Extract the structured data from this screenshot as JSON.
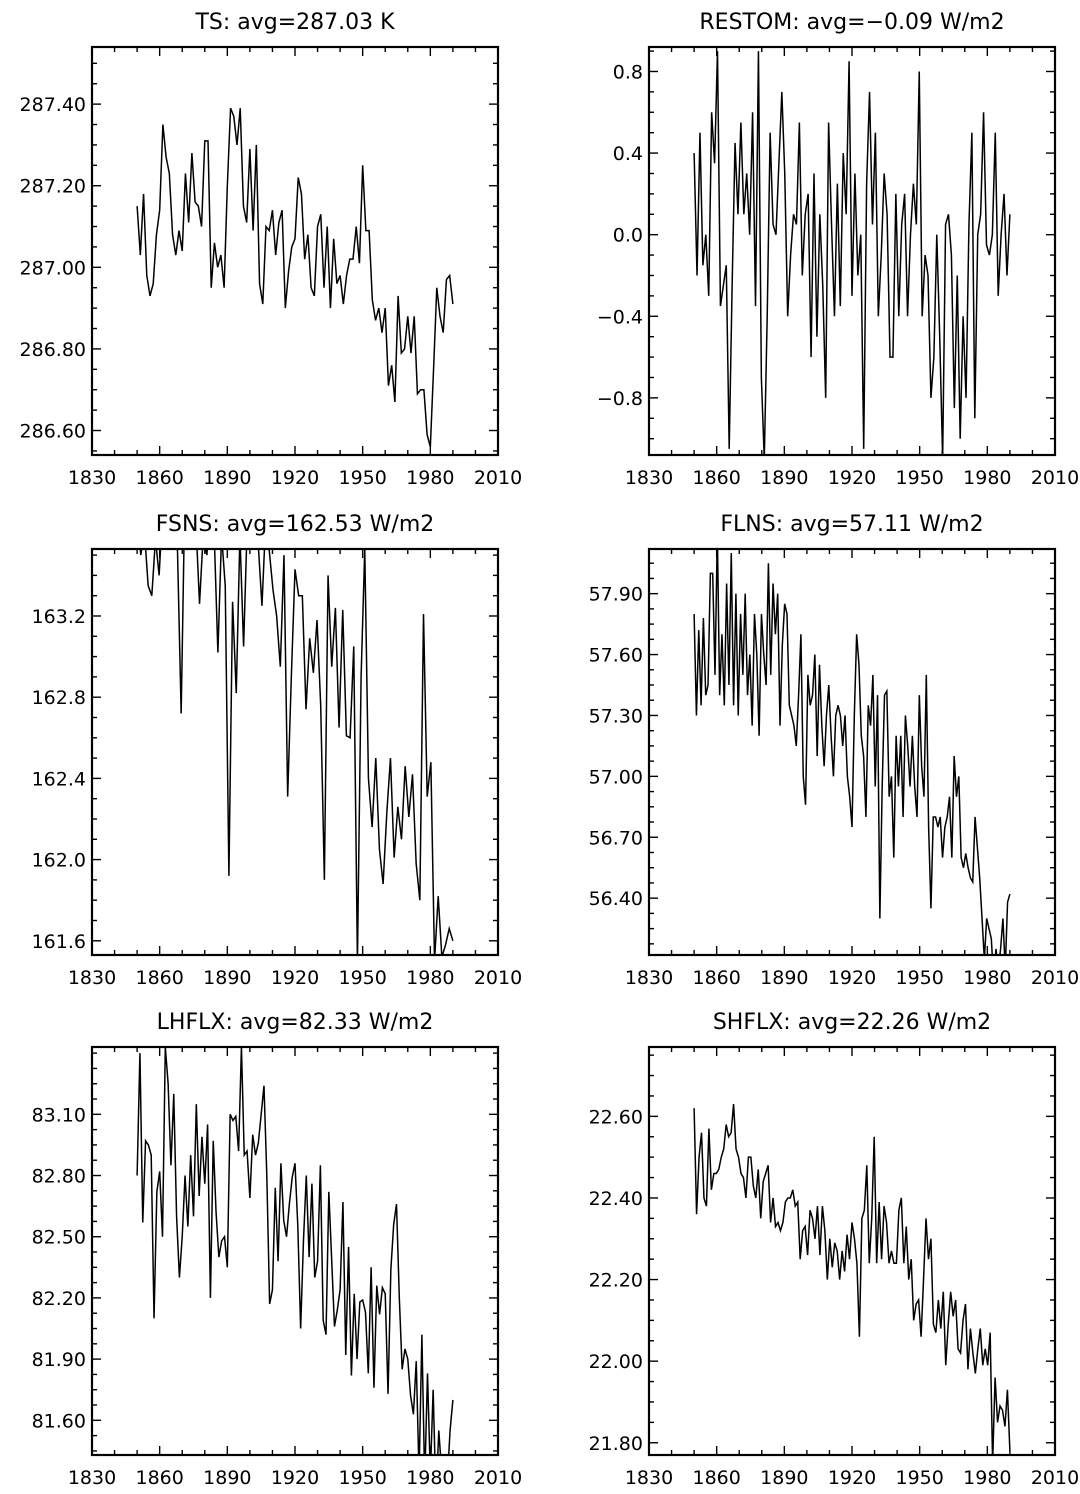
{
  "chart_data": [
    {
      "type": "line",
      "title": "TS: avg=287.03 K",
      "xlim": [
        1830,
        2010
      ],
      "xticks": [
        1830,
        1860,
        1890,
        1920,
        1950,
        1980,
        2010
      ],
      "xtick_labels": [
        "1830",
        "1860",
        "1890",
        "1920",
        "1950",
        "1980",
        "2010"
      ],
      "ylim": [
        286.54,
        287.54
      ],
      "yticks": [
        286.6,
        286.8,
        287.0,
        287.2,
        287.4
      ],
      "ytick_labels": [
        "286.60",
        "286.80",
        "287.00",
        "287.20",
        "287.40"
      ],
      "x_start": 1850,
      "y": [
        287.15,
        287.03,
        287.18,
        286.98,
        286.93,
        286.96,
        287.08,
        287.14,
        287.35,
        287.27,
        287.23,
        287.08,
        287.03,
        287.09,
        287.04,
        287.23,
        287.11,
        287.28,
        287.16,
        287.15,
        287.1,
        287.31,
        287.31,
        286.95,
        287.06,
        287.0,
        287.03,
        286.95,
        287.2,
        287.39,
        287.37,
        287.3,
        287.39,
        287.15,
        287.11,
        287.29,
        287.09,
        287.3,
        286.96,
        286.91,
        287.1,
        287.09,
        287.14,
        287.03,
        287.11,
        287.14,
        286.9,
        286.99,
        287.05,
        287.07,
        287.22,
        287.18,
        287.02,
        287.08,
        286.95,
        286.93,
        287.1,
        287.13,
        286.95,
        287.1,
        286.9,
        287.07,
        286.96,
        286.98,
        286.91,
        286.98,
        287.02,
        287.02,
        287.1,
        287.01,
        287.25,
        287.09,
        287.09,
        286.92,
        286.87,
        286.9,
        286.84,
        286.9,
        286.71,
        286.76,
        286.67,
        286.93,
        286.79,
        286.8,
        286.88,
        286.79,
        286.88,
        286.69,
        286.7,
        286.7,
        286.59,
        286.56,
        286.75,
        286.95,
        286.88,
        286.84,
        286.97,
        286.98,
        286.91
      ]
    },
    {
      "type": "line",
      "title": "RESTOM: avg=−0.09 W/m2",
      "xlim": [
        1830,
        2010
      ],
      "xticks": [
        1830,
        1860,
        1890,
        1920,
        1950,
        1980,
        2010
      ],
      "xtick_labels": [
        "1830",
        "1860",
        "1890",
        "1920",
        "1950",
        "1980",
        "2010"
      ],
      "ylim": [
        -1.08,
        0.92
      ],
      "yticks": [
        -0.8,
        -0.4,
        0.0,
        0.4,
        0.8
      ],
      "ytick_labels": [
        "−0.8",
        "−0.4",
        "0.0",
        "0.4",
        "0.8"
      ],
      "x_start": 1850,
      "y": [
        0.4,
        -0.2,
        0.5,
        -0.15,
        0.0,
        -0.3,
        0.6,
        0.35,
        0.9,
        -0.35,
        -0.25,
        -0.15,
        -1.05,
        -0.25,
        0.45,
        0.1,
        0.55,
        0.1,
        0.3,
        0.0,
        0.6,
        -0.35,
        0.9,
        -0.7,
        -1.1,
        -0.4,
        0.5,
        0.05,
        0.0,
        0.35,
        0.7,
        0.3,
        -0.4,
        -0.1,
        0.1,
        0.05,
        0.55,
        -0.2,
        0.1,
        0.2,
        -0.6,
        0.3,
        -0.5,
        0.1,
        -0.25,
        -0.8,
        0.55,
        0.05,
        -0.4,
        0.25,
        -0.35,
        0.4,
        0.1,
        0.85,
        -0.3,
        0.3,
        -0.2,
        0.0,
        -1.05,
        0.25,
        0.7,
        0.05,
        0.5,
        -0.4,
        -0.1,
        0.3,
        0.1,
        -0.6,
        -0.6,
        0.2,
        -0.4,
        0.05,
        0.2,
        -0.4,
        0.0,
        0.25,
        0.05,
        0.8,
        -0.4,
        -0.1,
        -0.2,
        -0.8,
        -0.6,
        0.0,
        -0.5,
        -1.1,
        0.05,
        0.1,
        -0.1,
        -0.85,
        -0.2,
        -1.0,
        -0.4,
        -0.8,
        0.05,
        0.5,
        -0.9,
        0.0,
        0.1,
        0.6,
        -0.05,
        -0.1,
        0.0,
        0.5,
        -0.3,
        0.0,
        0.2,
        -0.2,
        0.1
      ]
    },
    {
      "type": "line",
      "title": "FSNS: avg=162.53 W/m2",
      "xlim": [
        1830,
        2010
      ],
      "xticks": [
        1830,
        1860,
        1890,
        1920,
        1950,
        1980,
        2010
      ],
      "xtick_labels": [
        "1830",
        "1860",
        "1890",
        "1920",
        "1950",
        "1980",
        "2010"
      ],
      "ylim": [
        161.53,
        163.53
      ],
      "yticks": [
        161.6,
        162.0,
        162.4,
        162.8,
        163.2
      ],
      "ytick_labels": [
        "161.6",
        "162.0",
        "162.4",
        "162.8",
        "163.2"
      ],
      "x_start": 1850,
      "y": [
        163.7,
        163.5,
        163.62,
        163.35,
        163.3,
        163.58,
        163.4,
        163.75,
        163.66,
        163.8,
        163.64,
        163.52,
        162.72,
        163.8,
        163.62,
        163.58,
        163.66,
        163.26,
        163.6,
        163.5,
        163.75,
        163.6,
        163.02,
        163.6,
        163.35,
        161.92,
        163.27,
        162.82,
        163.6,
        163.05,
        163.66,
        163.53,
        163.6,
        163.55,
        163.25,
        163.66,
        163.52,
        163.33,
        163.2,
        162.95,
        163.5,
        162.31,
        162.9,
        163.43,
        163.3,
        163.3,
        162.74,
        163.09,
        162.92,
        163.18,
        162.76,
        161.9,
        163.4,
        162.95,
        163.24,
        162.65,
        163.23,
        162.61,
        162.6,
        163.05,
        161.5,
        162.9,
        163.53,
        162.4,
        162.16,
        162.5,
        162.05,
        161.88,
        162.23,
        162.5,
        162.01,
        162.26,
        162.1,
        162.46,
        162.21,
        162.42,
        161.98,
        161.8,
        163.21,
        162.31,
        162.48,
        161.5,
        161.82,
        161.52,
        161.58,
        161.66,
        161.6
      ]
    },
    {
      "type": "line",
      "title": "FLNS: avg=57.11 W/m2",
      "xlim": [
        1830,
        2010
      ],
      "xticks": [
        1830,
        1860,
        1890,
        1920,
        1950,
        1980,
        2010
      ],
      "xtick_labels": [
        "1830",
        "1860",
        "1890",
        "1920",
        "1950",
        "1980",
        "2010"
      ],
      "ylim": [
        56.12,
        58.12
      ],
      "yticks": [
        56.4,
        56.7,
        57.0,
        57.3,
        57.6,
        57.9
      ],
      "ytick_labels": [
        "56.40",
        "56.70",
        "57.00",
        "57.30",
        "57.60",
        "57.90"
      ],
      "x_start": 1850,
      "y": [
        57.8,
        57.3,
        57.72,
        57.35,
        57.78,
        57.4,
        57.45,
        58.0,
        58.0,
        57.5,
        58.2,
        57.4,
        57.7,
        57.35,
        57.95,
        57.45,
        58.1,
        57.35,
        57.9,
        57.3,
        57.8,
        57.5,
        57.9,
        57.4,
        57.6,
        57.25,
        57.8,
        57.6,
        57.2,
        57.8,
        57.6,
        57.45,
        58.05,
        57.5,
        57.95,
        57.7,
        57.9,
        57.25,
        57.65,
        57.85,
        57.8,
        57.35,
        57.3,
        57.25,
        57.15,
        57.4,
        57.7,
        57.0,
        56.86,
        57.5,
        57.35,
        57.4,
        57.6,
        57.1,
        57.55,
        57.25,
        57.05,
        57.3,
        57.45,
        57.2,
        57.0,
        57.3,
        57.35,
        57.3,
        57.15,
        57.3,
        57.0,
        56.9,
        56.75,
        57.3,
        57.7,
        57.55,
        57.2,
        57.1,
        56.8,
        57.35,
        57.25,
        57.5,
        56.95,
        57.4,
        56.3,
        56.95,
        57.4,
        57.42,
        56.9,
        57.0,
        56.6,
        57.2,
        56.95,
        57.2,
        56.8,
        57.3,
        57.15,
        56.95,
        57.2,
        56.95,
        56.8,
        57.4,
        57.05,
        56.9,
        57.5,
        56.75,
        56.35,
        56.8,
        56.8,
        56.75,
        56.8,
        56.6,
        56.75,
        56.8,
        56.9,
        56.6,
        57.1,
        56.9,
        57.0,
        56.6,
        56.55,
        56.62,
        56.55,
        56.5,
        56.48,
        56.8,
        56.65,
        56.5,
        56.3,
        56.1,
        56.3,
        56.25,
        56.2,
        56.0,
        56.15,
        56.05,
        56.15,
        56.3,
        56.05,
        56.38,
        56.42
      ]
    },
    {
      "type": "line",
      "title": "LHFLX: avg=82.33 W/m2",
      "xlim": [
        1830,
        2010
      ],
      "xticks": [
        1830,
        1860,
        1890,
        1920,
        1950,
        1980,
        2010
      ],
      "xtick_labels": [
        "1830",
        "1860",
        "1890",
        "1920",
        "1950",
        "1980",
        "2010"
      ],
      "ylim": [
        81.43,
        83.43
      ],
      "yticks": [
        81.6,
        81.9,
        82.2,
        82.5,
        82.8,
        83.1
      ],
      "ytick_labels": [
        "81.60",
        "81.90",
        "82.20",
        "82.50",
        "82.80",
        "83.10"
      ],
      "x_start": 1850,
      "y": [
        82.8,
        83.4,
        82.57,
        82.97,
        82.95,
        82.9,
        82.1,
        82.72,
        82.82,
        82.5,
        83.43,
        83.25,
        82.85,
        83.2,
        82.6,
        82.3,
        82.5,
        82.8,
        82.55,
        82.9,
        82.6,
        83.15,
        82.7,
        82.99,
        82.76,
        83.05,
        82.2,
        82.97,
        82.62,
        82.4,
        82.48,
        82.5,
        82.35,
        83.1,
        83.07,
        83.09,
        82.92,
        83.43,
        82.9,
        82.92,
        82.69,
        83.0,
        82.9,
        82.96,
        83.1,
        83.24,
        82.8,
        82.17,
        82.24,
        82.74,
        82.38,
        82.86,
        82.58,
        82.5,
        82.66,
        82.79,
        82.86,
        82.55,
        82.05,
        82.48,
        82.8,
        82.4,
        82.76,
        82.3,
        82.38,
        82.85,
        82.09,
        82.02,
        82.72,
        82.39,
        82.06,
        82.14,
        82.24,
        82.67,
        81.92,
        82.45,
        81.82,
        82.22,
        81.9,
        82.18,
        82.19,
        82.13,
        81.83,
        82.35,
        81.76,
        82.26,
        82.12,
        82.25,
        82.22,
        81.73,
        82.34,
        82.56,
        82.66,
        82.2,
        81.85,
        81.95,
        81.9,
        81.72,
        81.63,
        81.89,
        81.33,
        82.02,
        81.3,
        81.83,
        81.33,
        81.75,
        81.21,
        81.55,
        81.35,
        81.2,
        81.3,
        81.55,
        81.7
      ]
    },
    {
      "type": "line",
      "title": "SHFLX: avg=22.26 W/m2",
      "xlim": [
        1830,
        2010
      ],
      "xticks": [
        1830,
        1860,
        1890,
        1920,
        1950,
        1980,
        2010
      ],
      "xtick_labels": [
        "1830",
        "1860",
        "1890",
        "1920",
        "1950",
        "1980",
        "2010"
      ],
      "ylim": [
        21.77,
        22.77
      ],
      "yticks": [
        21.8,
        22.0,
        22.2,
        22.4,
        22.6
      ],
      "ytick_labels": [
        "21.80",
        "22.00",
        "22.20",
        "22.40",
        "22.60"
      ],
      "x_start": 1850,
      "y": [
        22.62,
        22.36,
        22.5,
        22.56,
        22.4,
        22.38,
        22.57,
        22.42,
        22.46,
        22.46,
        22.47,
        22.5,
        22.52,
        22.58,
        22.55,
        22.56,
        22.63,
        22.52,
        22.5,
        22.46,
        22.45,
        22.4,
        22.5,
        22.5,
        22.43,
        22.4,
        22.47,
        22.35,
        22.44,
        22.46,
        22.48,
        22.34,
        22.4,
        22.33,
        22.34,
        22.32,
        22.34,
        22.39,
        22.4,
        22.4,
        22.42,
        22.38,
        22.39,
        22.25,
        22.32,
        22.33,
        22.26,
        22.37,
        22.35,
        22.3,
        22.38,
        22.26,
        22.38,
        22.32,
        22.2,
        22.3,
        22.23,
        22.29,
        22.27,
        22.2,
        22.27,
        22.22,
        22.31,
        22.25,
        22.34,
        22.3,
        22.24,
        22.06,
        22.35,
        22.37,
        22.48,
        22.24,
        22.35,
        22.55,
        22.24,
        22.39,
        22.25,
        22.38,
        22.34,
        22.24,
        22.27,
        22.24,
        22.24,
        22.37,
        22.4,
        22.24,
        22.33,
        22.2,
        22.25,
        22.1,
        22.14,
        22.15,
        22.06,
        22.2,
        22.35,
        22.25,
        22.3,
        22.09,
        22.07,
        22.15,
        22.08,
        22.17,
        21.99,
        22.09,
        22.17,
        22.11,
        22.15,
        22.03,
        22.02,
        22.1,
        22.14,
        21.98,
        22.08,
        22.02,
        21.97,
        22.03,
        22.08,
        21.99,
        22.03,
        21.99,
        22.07,
        21.75,
        21.96,
        21.85,
        21.89,
        21.88,
        21.84,
        21.93,
        21.78
      ]
    }
  ]
}
